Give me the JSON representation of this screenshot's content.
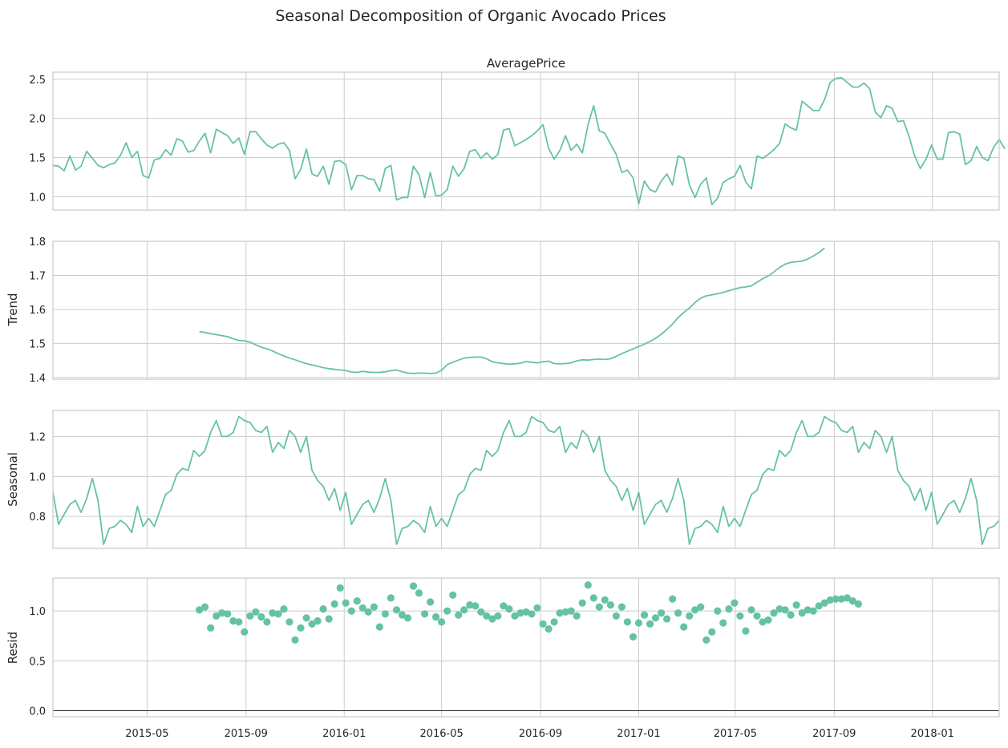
{
  "figure": {
    "title": "Seasonal Decomposition of Organic Avocado Prices"
  },
  "colors": {
    "line": "#66c2a5",
    "frame": "#cccccc",
    "grid": "#cccccc",
    "text": "#262626",
    "zero": "#262626"
  },
  "x_axis": {
    "start": "2015-01-04",
    "end": "2018-03-25",
    "ticks": [
      {
        "date": "2015-05-01",
        "label": "2015-05"
      },
      {
        "date": "2015-09-01",
        "label": "2015-09"
      },
      {
        "date": "2016-01-01",
        "label": "2016-01"
      },
      {
        "date": "2016-05-01",
        "label": "2016-05"
      },
      {
        "date": "2016-09-01",
        "label": "2016-09"
      },
      {
        "date": "2017-01-01",
        "label": "2017-01"
      },
      {
        "date": "2017-05-01",
        "label": "2017-05"
      },
      {
        "date": "2017-09-01",
        "label": "2017-09"
      },
      {
        "date": "2018-01-01",
        "label": "2018-01"
      }
    ]
  },
  "chart_data": [
    {
      "type": "line",
      "panel": "observed",
      "title": "AveragePrice",
      "ylabel": "",
      "ylim": [
        0.83,
        2.59
      ],
      "yticks": [
        1.0,
        1.5,
        2.0,
        2.5
      ],
      "yticklabels": [
        "1.0",
        "1.5",
        "2.0",
        "2.5"
      ],
      "start": "2015-01-04",
      "freq_days": 7,
      "values": [
        1.4,
        1.39,
        1.33,
        1.52,
        1.34,
        1.39,
        1.58,
        1.49,
        1.4,
        1.37,
        1.41,
        1.43,
        1.53,
        1.69,
        1.5,
        1.58,
        1.27,
        1.24,
        1.47,
        1.49,
        1.6,
        1.53,
        1.74,
        1.71,
        1.57,
        1.59,
        1.71,
        1.81,
        1.56,
        1.86,
        1.82,
        1.78,
        1.68,
        1.75,
        1.54,
        1.83,
        1.83,
        1.74,
        1.66,
        1.62,
        1.67,
        1.69,
        1.59,
        1.23,
        1.35,
        1.61,
        1.29,
        1.26,
        1.39,
        1.16,
        1.45,
        1.46,
        1.41,
        1.09,
        1.27,
        1.27,
        1.23,
        1.22,
        1.07,
        1.36,
        1.4,
        0.96,
        0.99,
        0.99,
        1.39,
        1.28,
        0.99,
        1.31,
        1.01,
        1.02,
        1.09,
        1.39,
        1.26,
        1.36,
        1.58,
        1.6,
        1.49,
        1.56,
        1.48,
        1.54,
        1.85,
        1.87,
        1.65,
        1.69,
        1.73,
        1.78,
        1.84,
        1.92,
        1.62,
        1.48,
        1.59,
        1.78,
        1.59,
        1.67,
        1.56,
        1.92,
        2.16,
        1.84,
        1.81,
        1.67,
        1.54,
        1.31,
        1.34,
        1.24,
        0.91,
        1.2,
        1.09,
        1.06,
        1.2,
        1.29,
        1.15,
        1.52,
        1.49,
        1.15,
        0.99,
        1.16,
        1.24,
        0.9,
        0.98,
        1.18,
        1.23,
        1.26,
        1.4,
        1.19,
        1.1,
        1.52,
        1.49,
        1.54,
        1.6,
        1.68,
        1.93,
        1.88,
        1.85,
        2.22,
        2.16,
        2.1,
        2.1,
        2.24,
        2.46,
        2.51,
        2.52,
        2.46,
        2.4,
        2.4,
        2.45,
        2.38,
        2.08,
        2.01,
        2.16,
        2.13,
        1.96,
        1.97,
        1.77,
        1.52,
        1.36,
        1.48,
        1.66,
        1.48,
        1.48,
        1.82,
        1.83,
        1.8,
        1.41,
        1.46,
        1.64,
        1.5,
        1.46,
        1.63,
        1.73,
        1.61
      ]
    },
    {
      "type": "line",
      "panel": "trend",
      "title": "",
      "ylabel": "Trend",
      "ylim": [
        1.395,
        1.8
      ],
      "yticks": [
        1.4,
        1.5,
        1.6,
        1.7,
        1.8
      ],
      "yticklabels": [
        "1.4",
        "1.5",
        "1.6",
        "1.7",
        "1.8"
      ],
      "start": "2015-07-05",
      "freq_days": 7,
      "values": [
        1.535,
        1.532,
        1.529,
        1.526,
        1.523,
        1.52,
        1.514,
        1.509,
        1.508,
        1.504,
        1.496,
        1.489,
        1.484,
        1.478,
        1.47,
        1.463,
        1.457,
        1.452,
        1.446,
        1.441,
        1.437,
        1.433,
        1.429,
        1.426,
        1.424,
        1.422,
        1.421,
        1.416,
        1.415,
        1.418,
        1.416,
        1.415,
        1.415,
        1.417,
        1.42,
        1.422,
        1.417,
        1.413,
        1.412,
        1.413,
        1.413,
        1.412,
        1.413,
        1.421,
        1.438,
        1.445,
        1.451,
        1.457,
        1.459,
        1.46,
        1.46,
        1.455,
        1.446,
        1.443,
        1.441,
        1.439,
        1.44,
        1.442,
        1.447,
        1.445,
        1.443,
        1.446,
        1.448,
        1.441,
        1.44,
        1.441,
        1.443,
        1.449,
        1.452,
        1.451,
        1.453,
        1.454,
        1.453,
        1.455,
        1.462,
        1.47,
        1.477,
        1.484,
        1.491,
        1.498,
        1.506,
        1.515,
        1.527,
        1.541,
        1.557,
        1.576,
        1.591,
        1.604,
        1.62,
        1.633,
        1.64,
        1.643,
        1.646,
        1.65,
        1.655,
        1.66,
        1.664,
        1.666,
        1.669,
        1.68,
        1.69,
        1.698,
        1.71,
        1.723,
        1.733,
        1.738,
        1.74,
        1.742,
        1.748,
        1.757,
        1.767,
        1.78
      ]
    },
    {
      "type": "line",
      "panel": "seasonal",
      "title": "",
      "ylabel": "Seasonal",
      "ylim": [
        0.64,
        1.33
      ],
      "yticks": [
        0.8,
        1.0,
        1.2
      ],
      "yticklabels": [
        "0.8",
        "1.0",
        "1.2"
      ],
      "start": "2015-01-04",
      "freq_days": 7,
      "values": [
        0.92,
        0.76,
        0.81,
        0.86,
        0.88,
        0.82,
        0.89,
        0.99,
        0.88,
        0.66,
        0.74,
        0.75,
        0.78,
        0.76,
        0.72,
        0.85,
        0.75,
        0.79,
        0.75,
        0.83,
        0.91,
        0.93,
        1.01,
        1.04,
        1.03,
        1.13,
        1.1,
        1.13,
        1.22,
        1.28,
        1.2,
        1.2,
        1.22,
        1.3,
        1.28,
        1.27,
        1.23,
        1.22,
        1.25,
        1.12,
        1.17,
        1.14,
        1.23,
        1.2,
        1.12,
        1.2,
        1.03,
        0.98,
        0.95,
        0.88,
        0.94,
        0.83,
        0.92,
        0.76,
        0.81,
        0.86,
        0.88,
        0.82,
        0.89,
        0.99,
        0.88,
        0.66,
        0.74,
        0.75,
        0.78,
        0.76,
        0.72,
        0.85,
        0.75,
        0.79,
        0.75,
        0.83,
        0.91,
        0.93,
        1.01,
        1.04,
        1.03,
        1.13,
        1.1,
        1.13,
        1.22,
        1.28,
        1.2,
        1.2,
        1.22,
        1.3,
        1.28,
        1.27,
        1.23,
        1.22,
        1.25,
        1.12,
        1.17,
        1.14,
        1.23,
        1.2,
        1.12,
        1.2,
        1.03,
        0.98,
        0.95,
        0.88,
        0.94,
        0.83,
        0.92,
        0.76,
        0.81,
        0.86,
        0.88,
        0.82,
        0.89,
        0.99,
        0.88,
        0.66,
        0.74,
        0.75,
        0.78,
        0.76,
        0.72,
        0.85,
        0.75,
        0.79,
        0.75,
        0.83,
        0.91,
        0.93,
        1.01,
        1.04,
        1.03,
        1.13,
        1.1,
        1.13,
        1.22,
        1.28,
        1.2,
        1.2,
        1.22,
        1.3,
        1.28,
        1.27,
        1.23,
        1.22,
        1.25,
        1.12,
        1.17,
        1.14,
        1.23,
        1.2,
        1.12,
        1.2,
        1.03,
        0.98,
        0.95,
        0.88,
        0.94,
        0.83,
        0.92,
        0.76,
        0.81,
        0.86,
        0.88,
        0.82,
        0.89,
        0.99,
        0.88,
        0.66,
        0.74,
        0.75,
        0.78
      ]
    },
    {
      "type": "scatter",
      "panel": "resid",
      "title": "",
      "ylabel": "Resid",
      "ylim": [
        -0.06,
        1.33
      ],
      "yticks": [
        0.0,
        0.5,
        1.0
      ],
      "yticklabels": [
        "0.0",
        "0.5",
        "1.0"
      ],
      "baseline": 0.0,
      "start": "2015-07-05",
      "freq_days": 7,
      "values": [
        1.01,
        1.04,
        0.83,
        0.95,
        0.98,
        0.97,
        0.9,
        0.89,
        0.79,
        0.95,
        0.99,
        0.94,
        0.89,
        0.98,
        0.97,
        1.02,
        0.89,
        0.71,
        0.83,
        0.93,
        0.87,
        0.9,
        1.02,
        0.92,
        1.07,
        1.23,
        1.08,
        1.0,
        1.1,
        1.03,
        0.99,
        1.04,
        0.84,
        0.97,
        1.13,
        1.01,
        0.96,
        0.93,
        1.25,
        1.18,
        0.97,
        1.09,
        0.94,
        0.89,
        1.0,
        1.16,
        0.96,
        1.01,
        1.06,
        1.05,
        0.99,
        0.95,
        0.92,
        0.95,
        1.05,
        1.02,
        0.95,
        0.98,
        0.99,
        0.97,
        1.03,
        0.87,
        0.82,
        0.89,
        0.98,
        0.99,
        1.0,
        0.95,
        1.08,
        1.26,
        1.13,
        1.04,
        1.11,
        1.06,
        0.95,
        1.04,
        0.89,
        0.74,
        0.88,
        0.96,
        0.87,
        0.93,
        0.98,
        0.92,
        1.12,
        0.98,
        0.84,
        0.95,
        1.01,
        1.04,
        0.71,
        0.79,
        1.0,
        0.88,
        1.02,
        1.08,
        0.95,
        0.8,
        1.01,
        0.95,
        0.89,
        0.91,
        0.98,
        1.02,
        1.01,
        0.96,
        1.06,
        0.98,
        1.01,
        1.0,
        1.05,
        1.08,
        1.11,
        1.12,
        1.12,
        1.13,
        1.1,
        1.07
      ]
    }
  ]
}
